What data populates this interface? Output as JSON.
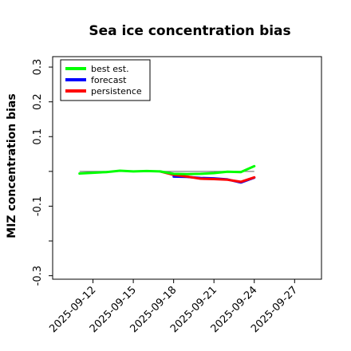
{
  "chart_data": {
    "type": "line",
    "title": "Sea ice concentration bias",
    "xlabel": "",
    "ylabel": "MIZ concentration bias",
    "ylim": [
      -0.31,
      0.33
    ],
    "xlim": [
      "2025-09-09",
      "2025-09-29"
    ],
    "y_ticks": [
      -0.3,
      -0.2,
      -0.1,
      0.0,
      0.1,
      0.2,
      0.3
    ],
    "y_tick_labels": [
      "-0.3",
      "",
      "-0.1",
      "",
      "0.1",
      "0.2",
      "0.3"
    ],
    "x_ticks": [
      "2025-09-12",
      "2025-09-15",
      "2025-09-18",
      "2025-09-21",
      "2025-09-24",
      "2025-09-27"
    ],
    "highlight_x_tick": "2025-09-18",
    "highlight_color": "#228b22",
    "reference_line": {
      "y": 0.0,
      "from": "2025-09-11",
      "to": "2025-09-24",
      "color": "#808080"
    },
    "grid": false,
    "legend_position": "top-left",
    "series": [
      {
        "name": "best est.",
        "color": "#00ff00",
        "x": [
          "2025-09-11",
          "2025-09-12",
          "2025-09-13",
          "2025-09-14",
          "2025-09-15",
          "2025-09-16",
          "2025-09-17",
          "2025-09-18",
          "2025-09-19",
          "2025-09-20",
          "2025-09-21",
          "2025-09-22",
          "2025-09-23",
          "2025-09-24"
        ],
        "y": [
          -0.006,
          -0.004,
          -0.002,
          0.002,
          0.0,
          0.001,
          0.0,
          -0.007,
          -0.008,
          -0.007,
          -0.005,
          -0.001,
          -0.002,
          0.015
        ]
      },
      {
        "name": "forecast",
        "color": "#0000ff",
        "x": [
          "2025-09-18",
          "2025-09-19",
          "2025-09-20",
          "2025-09-21",
          "2025-09-22",
          "2025-09-23",
          "2025-09-24"
        ],
        "y": [
          -0.015,
          -0.016,
          -0.019,
          -0.02,
          -0.023,
          -0.032,
          -0.018
        ]
      },
      {
        "name": "persistence",
        "color": "#ff0000",
        "x": [
          "2025-09-17",
          "2025-09-18",
          "2025-09-19",
          "2025-09-20",
          "2025-09-21",
          "2025-09-22",
          "2025-09-23",
          "2025-09-24"
        ],
        "y": [
          0.0,
          -0.01,
          -0.015,
          -0.021,
          -0.022,
          -0.024,
          -0.03,
          -0.017
        ]
      }
    ]
  }
}
